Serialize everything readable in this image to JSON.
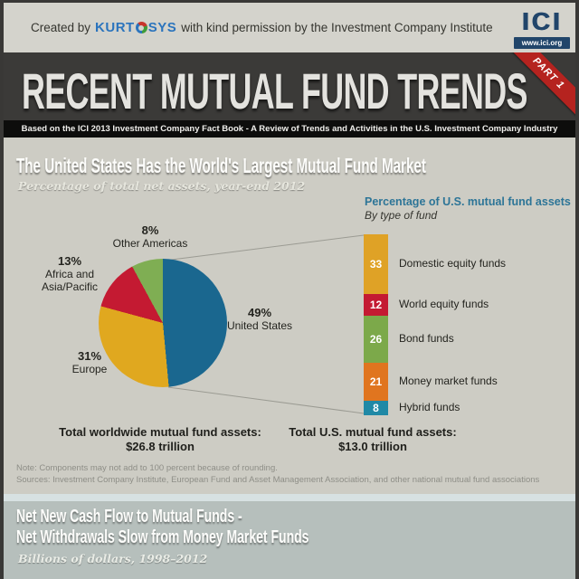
{
  "top_bar": {
    "created_prefix": "Created by",
    "brand_left": "KURT",
    "brand_right": "SYS",
    "created_suffix": "with kind permission by the Investment Company Institute",
    "ici": {
      "acronym": "ICI",
      "site": "www.ici.org"
    }
  },
  "banner": {
    "title": "RECENT MUTUAL FUND TRENDS",
    "ribbon_label": "PART 1"
  },
  "source_strip": "Based on the ICI 2013 Investment Company Fact Book - A Review of Trends and Activities in the U.S. Investment Company Industry",
  "section1": {
    "heading": "The United States Has the World's Largest Mutual Fund Market",
    "subheading": "Percentage of total net assets, year-end 2012",
    "world_total_label": "Total worldwide mutual fund assets:",
    "world_total_value": "$26.8 trillion",
    "us_total_label": "Total U.S. mutual fund assets:",
    "us_total_value": "$13.0 trillion",
    "note": "Note: Components may not add to 100 percent because of rounding.",
    "sources": "Sources: Investment Company Institute, European Fund and Asset Management Association, and other national mutual fund associations"
  },
  "chart_data": [
    {
      "type": "pie",
      "title": "Percentage of total net assets, year-end 2012",
      "labels": [
        "United States",
        "Europe",
        "Africa and Asia/Pacific",
        "Other Americas"
      ],
      "values": [
        49,
        31,
        13,
        8
      ],
      "unit": "%",
      "colors": [
        "#1a678f",
        "#e0a81f",
        "#c41a32",
        "#7fae53"
      ],
      "start_angle": "12 o'clock, clockwise",
      "legend_position": "around"
    },
    {
      "type": "bar",
      "variant": "stacked-column",
      "title": "Percentage of U.S. mutual fund assets",
      "subtitle": "By type of fund",
      "categories": [
        "Domestic equity funds",
        "World equity funds",
        "Bond funds",
        "Money market funds",
        "Hybrid funds"
      ],
      "values": [
        33,
        12,
        26,
        21,
        8
      ],
      "colors": [
        "#dfa226",
        "#c41a32",
        "#7ca94a",
        "#e0751f",
        "#2089a6"
      ],
      "value_labels": "inside-white",
      "total": 100
    }
  ],
  "section2": {
    "heading_line1": "Net New Cash Flow to Mutual Funds -",
    "heading_line2": "Net Withdrawals Slow from Money Market Funds",
    "subheading": "Billions of dollars, 1998–2012"
  },
  "palette": {
    "banner_bg": "#3b3a38",
    "ribbon_red": "#b5231f",
    "body_bg": "#cdccc4",
    "bottom_bg": "#b6bfbc",
    "header_blue": "#2d7597",
    "ici_navy": "#21456a",
    "kurtosys_blue": "#2b74bd"
  }
}
